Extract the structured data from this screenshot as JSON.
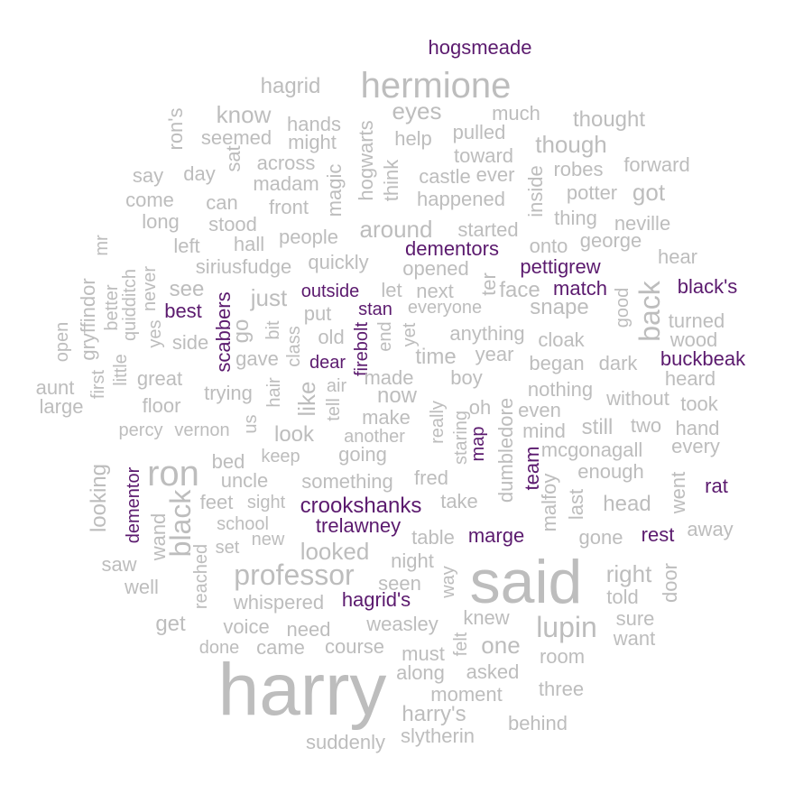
{
  "colors": {
    "background": "#ffffff",
    "common": "#bdbdbd",
    "highlight": "#5b1a6e"
  },
  "words": [
    {
      "text": "harry",
      "group": "common",
      "rot": 0
    },
    {
      "text": "said",
      "group": "common",
      "rot": 0
    },
    {
      "text": "hermione",
      "group": "common",
      "rot": 0
    },
    {
      "text": "ron",
      "group": "common",
      "rot": 0
    },
    {
      "text": "professor",
      "group": "common",
      "rot": 0
    },
    {
      "text": "lupin",
      "group": "common",
      "rot": 0
    },
    {
      "text": "black",
      "group": "common",
      "rot": 90
    },
    {
      "text": "back",
      "group": "common",
      "rot": 90
    },
    {
      "text": "hogsmeade",
      "group": "highlight",
      "rot": 0
    },
    {
      "text": "hagrid",
      "group": "common",
      "rot": 0
    },
    {
      "text": "know",
      "group": "common",
      "rot": 0
    },
    {
      "text": "eyes",
      "group": "common",
      "rot": 0
    },
    {
      "text": "hands",
      "group": "common",
      "rot": 0
    },
    {
      "text": "ron's",
      "group": "common",
      "rot": 90
    },
    {
      "text": "seemed",
      "group": "common",
      "rot": 0
    },
    {
      "text": "might",
      "group": "common",
      "rot": 0
    },
    {
      "text": "hogwarts",
      "group": "common",
      "rot": 90
    },
    {
      "text": "help",
      "group": "common",
      "rot": 0
    },
    {
      "text": "pulled",
      "group": "common",
      "rot": 0
    },
    {
      "text": "much",
      "group": "common",
      "rot": 0
    },
    {
      "text": "thought",
      "group": "common",
      "rot": 0
    },
    {
      "text": "though",
      "group": "common",
      "rot": 0
    },
    {
      "text": "toward",
      "group": "common",
      "rot": 0
    },
    {
      "text": "say",
      "group": "common",
      "rot": 0
    },
    {
      "text": "day",
      "group": "common",
      "rot": 0
    },
    {
      "text": "sat",
      "group": "common",
      "rot": 90
    },
    {
      "text": "across",
      "group": "common",
      "rot": 0
    },
    {
      "text": "madam",
      "group": "common",
      "rot": 0
    },
    {
      "text": "magic",
      "group": "common",
      "rot": 90
    },
    {
      "text": "think",
      "group": "common",
      "rot": 90
    },
    {
      "text": "castle",
      "group": "common",
      "rot": 0
    },
    {
      "text": "ever",
      "group": "common",
      "rot": 0
    },
    {
      "text": "inside",
      "group": "common",
      "rot": 90
    },
    {
      "text": "robes",
      "group": "common",
      "rot": 0
    },
    {
      "text": "forward",
      "group": "common",
      "rot": 0
    },
    {
      "text": "come",
      "group": "common",
      "rot": 0
    },
    {
      "text": "can",
      "group": "common",
      "rot": 0
    },
    {
      "text": "front",
      "group": "common",
      "rot": 0
    },
    {
      "text": "happened",
      "group": "common",
      "rot": 0
    },
    {
      "text": "potter",
      "group": "common",
      "rot": 0
    },
    {
      "text": "got",
      "group": "common",
      "rot": 0
    },
    {
      "text": "long",
      "group": "common",
      "rot": 0
    },
    {
      "text": "stood",
      "group": "common",
      "rot": 0
    },
    {
      "text": "around",
      "group": "common",
      "rot": 0
    },
    {
      "text": "started",
      "group": "common",
      "rot": 0
    },
    {
      "text": "thing",
      "group": "common",
      "rot": 0
    },
    {
      "text": "neville",
      "group": "common",
      "rot": 0
    },
    {
      "text": "mr",
      "group": "common",
      "rot": 90
    },
    {
      "text": "left",
      "group": "common",
      "rot": 0
    },
    {
      "text": "hall",
      "group": "common",
      "rot": 0
    },
    {
      "text": "people",
      "group": "common",
      "rot": 0
    },
    {
      "text": "dementors",
      "group": "highlight",
      "rot": 0
    },
    {
      "text": "onto",
      "group": "common",
      "rot": 0
    },
    {
      "text": "george",
      "group": "common",
      "rot": 0
    },
    {
      "text": "hear",
      "group": "common",
      "rot": 0
    },
    {
      "text": "quidditch",
      "group": "common",
      "rot": 90
    },
    {
      "text": "never",
      "group": "common",
      "rot": 90
    },
    {
      "text": "siriusfudge",
      "group": "common",
      "rot": 0
    },
    {
      "text": "quickly",
      "group": "common",
      "rot": 0
    },
    {
      "text": "opened",
      "group": "common",
      "rot": 0
    },
    {
      "text": "pettigrew",
      "group": "highlight",
      "rot": 0
    },
    {
      "text": "gryffindor",
      "group": "common",
      "rot": 90
    },
    {
      "text": "better",
      "group": "common",
      "rot": 90
    },
    {
      "text": "see",
      "group": "common",
      "rot": 0
    },
    {
      "text": "just",
      "group": "common",
      "rot": 0
    },
    {
      "text": "outside",
      "group": "highlight",
      "rot": 0
    },
    {
      "text": "let",
      "group": "common",
      "rot": 0
    },
    {
      "text": "next",
      "group": "common",
      "rot": 0
    },
    {
      "text": "ter",
      "group": "common",
      "rot": 90
    },
    {
      "text": "face",
      "group": "common",
      "rot": 0
    },
    {
      "text": "match",
      "group": "highlight",
      "rot": 0
    },
    {
      "text": "black's",
      "group": "highlight",
      "rot": 0
    },
    {
      "text": "scabbers",
      "group": "highlight",
      "rot": 90
    },
    {
      "text": "best",
      "group": "highlight",
      "rot": 0
    },
    {
      "text": "put",
      "group": "common",
      "rot": 0
    },
    {
      "text": "stan",
      "group": "highlight",
      "rot": 0
    },
    {
      "text": "everyone",
      "group": "common",
      "rot": 0
    },
    {
      "text": "snape",
      "group": "common",
      "rot": 0
    },
    {
      "text": "good",
      "group": "common",
      "rot": 90
    },
    {
      "text": "turned",
      "group": "common",
      "rot": 0
    },
    {
      "text": "open",
      "group": "common",
      "rot": 90
    },
    {
      "text": "yes",
      "group": "common",
      "rot": 90
    },
    {
      "text": "go",
      "group": "common",
      "rot": 90
    },
    {
      "text": "bit",
      "group": "common",
      "rot": 90
    },
    {
      "text": "side",
      "group": "common",
      "rot": 0
    },
    {
      "text": "old",
      "group": "common",
      "rot": 0
    },
    {
      "text": "end",
      "group": "common",
      "rot": 90
    },
    {
      "text": "yet",
      "group": "common",
      "rot": 90
    },
    {
      "text": "anything",
      "group": "common",
      "rot": 0
    },
    {
      "text": "cloak",
      "group": "common",
      "rot": 0
    },
    {
      "text": "wood",
      "group": "common",
      "rot": 0
    },
    {
      "text": "class",
      "group": "common",
      "rot": 90
    },
    {
      "text": "firebolt",
      "group": "highlight",
      "rot": 90
    },
    {
      "text": "gave",
      "group": "common",
      "rot": 0
    },
    {
      "text": "dear",
      "group": "highlight",
      "rot": 0
    },
    {
      "text": "time",
      "group": "common",
      "rot": 0
    },
    {
      "text": "year",
      "group": "common",
      "rot": 0
    },
    {
      "text": "began",
      "group": "common",
      "rot": 0
    },
    {
      "text": "dark",
      "group": "common",
      "rot": 0
    },
    {
      "text": "buckbeak",
      "group": "highlight",
      "rot": 0
    },
    {
      "text": "aunt",
      "group": "common",
      "rot": 0
    },
    {
      "text": "first",
      "group": "common",
      "rot": 90
    },
    {
      "text": "little",
      "group": "common",
      "rot": 90
    },
    {
      "text": "great",
      "group": "common",
      "rot": 0
    },
    {
      "text": "air",
      "group": "common",
      "rot": 0
    },
    {
      "text": "made",
      "group": "common",
      "rot": 0
    },
    {
      "text": "boy",
      "group": "common",
      "rot": 0
    },
    {
      "text": "heard",
      "group": "common",
      "rot": 0
    },
    {
      "text": "trying",
      "group": "common",
      "rot": 0
    },
    {
      "text": "hair",
      "group": "common",
      "rot": 90
    },
    {
      "text": "like",
      "group": "common",
      "rot": 90
    },
    {
      "text": "now",
      "group": "common",
      "rot": 0
    },
    {
      "text": "nothing",
      "group": "common",
      "rot": 0
    },
    {
      "text": "large",
      "group": "common",
      "rot": 0
    },
    {
      "text": "floor",
      "group": "common",
      "rot": 0
    },
    {
      "text": "tell",
      "group": "common",
      "rot": 90
    },
    {
      "text": "oh",
      "group": "common",
      "rot": 0
    },
    {
      "text": "even",
      "group": "common",
      "rot": 0
    },
    {
      "text": "without",
      "group": "common",
      "rot": 0
    },
    {
      "text": "took",
      "group": "common",
      "rot": 0
    },
    {
      "text": "percy",
      "group": "common",
      "rot": 0
    },
    {
      "text": "vernon",
      "group": "common",
      "rot": 0
    },
    {
      "text": "us",
      "group": "common",
      "rot": 90
    },
    {
      "text": "make",
      "group": "common",
      "rot": 0
    },
    {
      "text": "really",
      "group": "common",
      "rot": 90
    },
    {
      "text": "staring",
      "group": "common",
      "rot": 90
    },
    {
      "text": "mind",
      "group": "common",
      "rot": 0
    },
    {
      "text": "still",
      "group": "common",
      "rot": 0
    },
    {
      "text": "two",
      "group": "common",
      "rot": 0
    },
    {
      "text": "hand",
      "group": "common",
      "rot": 0
    },
    {
      "text": "look",
      "group": "common",
      "rot": 0
    },
    {
      "text": "another",
      "group": "common",
      "rot": 0
    },
    {
      "text": "dumbledore",
      "group": "common",
      "rot": 90
    },
    {
      "text": "map",
      "group": "highlight",
      "rot": 90
    },
    {
      "text": "mcgonagall",
      "group": "common",
      "rot": 0
    },
    {
      "text": "every",
      "group": "common",
      "rot": 0
    },
    {
      "text": "looking",
      "group": "common",
      "rot": 90
    },
    {
      "text": "bed",
      "group": "common",
      "rot": 0
    },
    {
      "text": "keep",
      "group": "common",
      "rot": 0
    },
    {
      "text": "going",
      "group": "common",
      "rot": 0
    },
    {
      "text": "team",
      "group": "highlight",
      "rot": 90
    },
    {
      "text": "malfoy",
      "group": "common",
      "rot": 90
    },
    {
      "text": "enough",
      "group": "common",
      "rot": 0
    },
    {
      "text": "uncle",
      "group": "common",
      "rot": 0
    },
    {
      "text": "something",
      "group": "common",
      "rot": 0
    },
    {
      "text": "fred",
      "group": "common",
      "rot": 0
    },
    {
      "text": "went",
      "group": "common",
      "rot": 90
    },
    {
      "text": "rat",
      "group": "highlight",
      "rot": 0
    },
    {
      "text": "dementor",
      "group": "highlight",
      "rot": 90
    },
    {
      "text": "feet",
      "group": "common",
      "rot": 0
    },
    {
      "text": "sight",
      "group": "common",
      "rot": 0
    },
    {
      "text": "crookshanks",
      "group": "highlight",
      "rot": 0
    },
    {
      "text": "take",
      "group": "common",
      "rot": 0
    },
    {
      "text": "head",
      "group": "common",
      "rot": 0
    },
    {
      "text": "last",
      "group": "common",
      "rot": 90
    },
    {
      "text": "wand",
      "group": "common",
      "rot": 90
    },
    {
      "text": "school",
      "group": "common",
      "rot": 0
    },
    {
      "text": "trelawney",
      "group": "highlight",
      "rot": 0
    },
    {
      "text": "away",
      "group": "common",
      "rot": 0
    },
    {
      "text": "set",
      "group": "common",
      "rot": 0
    },
    {
      "text": "new",
      "group": "common",
      "rot": 0
    },
    {
      "text": "table",
      "group": "common",
      "rot": 0
    },
    {
      "text": "marge",
      "group": "highlight",
      "rot": 0
    },
    {
      "text": "gone",
      "group": "common",
      "rot": 0
    },
    {
      "text": "rest",
      "group": "highlight",
      "rot": 0
    },
    {
      "text": "saw",
      "group": "common",
      "rot": 0
    },
    {
      "text": "looked",
      "group": "common",
      "rot": 0
    },
    {
      "text": "night",
      "group": "common",
      "rot": 0
    },
    {
      "text": "reached",
      "group": "common",
      "rot": 90
    },
    {
      "text": "way",
      "group": "common",
      "rot": 90
    },
    {
      "text": "right",
      "group": "common",
      "rot": 0
    },
    {
      "text": "door",
      "group": "common",
      "rot": 90
    },
    {
      "text": "well",
      "group": "common",
      "rot": 0
    },
    {
      "text": "seen",
      "group": "common",
      "rot": 0
    },
    {
      "text": "told",
      "group": "common",
      "rot": 0
    },
    {
      "text": "whispered",
      "group": "common",
      "rot": 0
    },
    {
      "text": "hagrid's",
      "group": "highlight",
      "rot": 0
    },
    {
      "text": "get",
      "group": "common",
      "rot": 0
    },
    {
      "text": "voice",
      "group": "common",
      "rot": 0
    },
    {
      "text": "weasley",
      "group": "common",
      "rot": 0
    },
    {
      "text": "knew",
      "group": "common",
      "rot": 0
    },
    {
      "text": "sure",
      "group": "common",
      "rot": 0
    },
    {
      "text": "need",
      "group": "common",
      "rot": 0
    },
    {
      "text": "felt",
      "group": "common",
      "rot": 90
    },
    {
      "text": "one",
      "group": "common",
      "rot": 0
    },
    {
      "text": "want",
      "group": "common",
      "rot": 0
    },
    {
      "text": "done",
      "group": "common",
      "rot": 0
    },
    {
      "text": "came",
      "group": "common",
      "rot": 0
    },
    {
      "text": "course",
      "group": "common",
      "rot": 0
    },
    {
      "text": "must",
      "group": "common",
      "rot": 0
    },
    {
      "text": "room",
      "group": "common",
      "rot": 0
    },
    {
      "text": "along",
      "group": "common",
      "rot": 0
    },
    {
      "text": "asked",
      "group": "common",
      "rot": 0
    },
    {
      "text": "three",
      "group": "common",
      "rot": 0
    },
    {
      "text": "moment",
      "group": "common",
      "rot": 0
    },
    {
      "text": "harry's",
      "group": "common",
      "rot": 0
    },
    {
      "text": "behind",
      "group": "common",
      "rot": 0
    },
    {
      "text": "suddenly",
      "group": "common",
      "rot": 0
    },
    {
      "text": "slytherin",
      "group": "common",
      "rot": 0
    }
  ]
}
